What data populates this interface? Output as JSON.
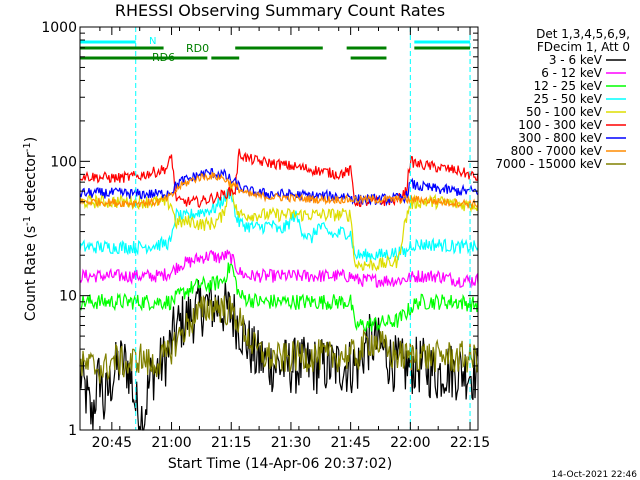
{
  "chart_data": {
    "type": "line",
    "title": "RHESSI Observing Summary Count Rates",
    "xlabel": "Start Time (14-Apr-06 20:37:02)",
    "ylabel_main": "Count Rate (s",
    "ylabel_sup1": "-1",
    "ylabel_mid": " detector",
    "ylabel_sup2": "-1",
    "ylabel_end": ")",
    "y_scale": "log",
    "ylim": [
      1,
      1000
    ],
    "xlim_minutes": [
      0,
      100
    ],
    "x_ticks": [
      {
        "value": 8,
        "label": "20:45"
      },
      {
        "value": 23,
        "label": "21:00"
      },
      {
        "value": 38,
        "label": "21:15"
      },
      {
        "value": 53,
        "label": "21:30"
      },
      {
        "value": 68,
        "label": "21:45"
      },
      {
        "value": 83,
        "label": "22:00"
      },
      {
        "value": 98,
        "label": "22:15"
      }
    ],
    "y_ticks": [
      {
        "value": 1,
        "label": "1"
      },
      {
        "value": 10,
        "label": "10"
      },
      {
        "value": 100,
        "label": "100"
      },
      {
        "value": 1000,
        "label": "1000"
      }
    ],
    "legend_header": [
      "Det 1,3,4,5,6,9,",
      "FDecim 1, Att 0"
    ],
    "series": [
      {
        "name": "3 - 6 keV",
        "color": "#000000",
        "x": [
          0,
          2,
          3,
          5,
          6,
          8,
          10,
          12,
          14,
          16,
          18,
          20,
          22,
          24,
          26,
          28,
          30,
          32,
          34,
          36,
          38,
          40,
          42,
          44,
          46,
          48,
          50,
          52,
          54,
          56,
          58,
          60,
          62,
          64,
          66,
          68,
          70,
          72,
          74,
          76,
          78,
          80,
          82,
          84,
          86,
          88,
          90,
          92,
          94,
          96,
          98,
          100
        ],
        "values": [
          2.6,
          1.6,
          1.2,
          2.6,
          1.5,
          2.4,
          3.2,
          3.0,
          1.5,
          1.2,
          2.6,
          3.0,
          3.6,
          5.5,
          6.5,
          7.0,
          8.0,
          8.5,
          8.5,
          8.0,
          7.5,
          6.0,
          4.5,
          3.5,
          3.3,
          3.1,
          3.0,
          3.0,
          3.0,
          3.0,
          3.0,
          3.0,
          3.0,
          3.0,
          3.0,
          3.0,
          3.0,
          4.4,
          4.5,
          4.0,
          3.3,
          3.0,
          2.9,
          3.0,
          3.0,
          2.8,
          2.6,
          2.9,
          2.7,
          2.8,
          2.7,
          2.6
        ]
      },
      {
        "name": "6 - 12 keV",
        "color": "#ff00ff",
        "x": [
          0,
          5,
          10,
          15,
          20,
          23,
          25,
          28,
          30,
          33,
          35,
          37,
          38,
          39,
          40,
          42,
          45,
          50,
          55,
          60,
          65,
          68,
          70,
          75,
          80,
          85,
          90,
          95,
          100
        ],
        "values": [
          14,
          14,
          14,
          14,
          14,
          15,
          17,
          18,
          19,
          20,
          19,
          20,
          19,
          17,
          15,
          14,
          14,
          14,
          14,
          14,
          14,
          14,
          13,
          13,
          13,
          14,
          14,
          13,
          13
        ]
      },
      {
        "name": "12 - 25 keV",
        "color": "#00ff00",
        "x": [
          0,
          5,
          10,
          15,
          20,
          23,
          25,
          27,
          30,
          33,
          36,
          38,
          39,
          40,
          42,
          45,
          50,
          55,
          60,
          65,
          68,
          69,
          70,
          75,
          80,
          85,
          90,
          95,
          100
        ],
        "values": [
          9,
          9,
          9,
          9,
          9,
          9,
          10,
          11,
          12,
          12,
          13,
          17,
          13,
          10,
          9.5,
          9,
          9,
          9,
          9,
          9,
          9,
          6,
          6,
          6.2,
          6.5,
          9,
          9,
          9,
          8.5
        ]
      },
      {
        "name": "25 - 50 keV",
        "color": "#00ffff",
        "x": [
          0,
          5,
          10,
          15,
          20,
          23,
          24,
          26,
          28,
          30,
          32,
          34,
          36,
          38,
          39,
          40,
          42,
          45,
          48,
          50,
          52,
          54,
          56,
          58,
          60,
          62,
          64,
          66,
          68,
          69,
          70,
          75,
          80,
          82,
          83,
          85,
          90,
          95,
          100
        ],
        "values": [
          23,
          23,
          23,
          23,
          24,
          25,
          40,
          38,
          40,
          42,
          43,
          45,
          52,
          60,
          40,
          35,
          33,
          32,
          34,
          30,
          33,
          40,
          30,
          26,
          33,
          30,
          28,
          30,
          29,
          20,
          20,
          20,
          21,
          21,
          24,
          24,
          24,
          23,
          23
        ]
      },
      {
        "name": "50 - 100 keV",
        "color": "#dddd00",
        "x": [
          0,
          5,
          10,
          15,
          20,
          23,
          24,
          26,
          28,
          30,
          32,
          34,
          36,
          38,
          39,
          40,
          42,
          45,
          50,
          55,
          60,
          65,
          68,
          69,
          70,
          75,
          80,
          83,
          85,
          90,
          95,
          100
        ],
        "values": [
          50,
          50,
          50,
          50,
          50,
          48,
          35,
          35,
          36,
          34,
          34,
          35,
          40,
          70,
          45,
          40,
          40,
          40,
          40,
          40,
          40,
          40,
          40,
          17,
          17,
          17,
          18,
          48,
          50,
          50,
          48,
          47
        ]
      },
      {
        "name": "100 - 300 keV",
        "color": "#ff0000",
        "x": [
          0,
          5,
          10,
          15,
          20,
          22,
          23,
          24,
          25,
          30,
          35,
          38,
          39,
          40,
          42,
          45,
          50,
          55,
          60,
          65,
          68,
          69,
          70,
          75,
          80,
          82,
          83,
          85,
          90,
          95,
          100
        ],
        "values": [
          78,
          76,
          75,
          78,
          85,
          90,
          110,
          55,
          50,
          50,
          55,
          60,
          60,
          115,
          105,
          100,
          95,
          90,
          85,
          80,
          85,
          50,
          50,
          50,
          52,
          60,
          100,
          95,
          90,
          85,
          75
        ]
      },
      {
        "name": "300 - 800 keV",
        "color": "#0000ff",
        "x": [
          0,
          5,
          10,
          15,
          20,
          23,
          25,
          28,
          30,
          33,
          36,
          38,
          40,
          42,
          45,
          50,
          55,
          60,
          65,
          68,
          69,
          70,
          75,
          80,
          82,
          83,
          85,
          90,
          95,
          100
        ],
        "values": [
          58,
          58,
          58,
          57,
          57,
          60,
          70,
          75,
          80,
          82,
          80,
          72,
          65,
          60,
          58,
          57,
          56,
          55,
          55,
          55,
          52,
          52,
          52,
          53,
          55,
          68,
          65,
          62,
          60,
          60
        ]
      },
      {
        "name": "800 - 7000 keV",
        "color": "#ff8c00",
        "x": [
          0,
          5,
          10,
          15,
          20,
          23,
          25,
          28,
          30,
          33,
          36,
          38,
          40,
          42,
          45,
          50,
          55,
          60,
          65,
          70,
          75,
          80,
          85,
          90,
          95,
          100
        ],
        "values": [
          50,
          50,
          49,
          49,
          50,
          55,
          65,
          72,
          76,
          78,
          75,
          68,
          62,
          57,
          55,
          54,
          53,
          52,
          52,
          52,
          52,
          52,
          52,
          50,
          49,
          48
        ]
      },
      {
        "name": "7000 - 15000 keV",
        "color": "#808000",
        "x": [
          0,
          3,
          6,
          9,
          12,
          15,
          18,
          20,
          22,
          24,
          26,
          28,
          30,
          32,
          34,
          36,
          38,
          40,
          42,
          44,
          46,
          48,
          50,
          52,
          54,
          56,
          58,
          60,
          62,
          64,
          66,
          68,
          70,
          72,
          74,
          76,
          78,
          80,
          82,
          84,
          86,
          88,
          90,
          92,
          94,
          96,
          98,
          100
        ],
        "values": [
          3.0,
          3.0,
          2.8,
          3.4,
          3.0,
          3.5,
          3.0,
          3.3,
          3.6,
          4.5,
          5.5,
          6.5,
          7.5,
          8.0,
          8.5,
          8.0,
          7.5,
          6.5,
          5.0,
          4.0,
          3.6,
          3.5,
          3.4,
          3.4,
          3.5,
          3.6,
          3.5,
          3.6,
          3.5,
          3.5,
          3.6,
          3.6,
          3.6,
          4.5,
          4.6,
          4.2,
          3.6,
          3.6,
          3.5,
          3.6,
          3.6,
          3.5,
          3.5,
          3.6,
          3.4,
          3.5,
          3.4,
          3.5
        ]
      }
    ],
    "flags": {
      "N_label": "N",
      "RD0_label": "RD0",
      "RD6_label": "RD6",
      "N_segments": [
        [
          0,
          14
        ],
        [
          84,
          98
        ]
      ],
      "RD0_segments": [
        [
          0,
          21
        ],
        [
          39,
          61
        ],
        [
          67,
          77
        ],
        [
          84,
          98
        ]
      ],
      "RD6_segments": [
        [
          0,
          32
        ],
        [
          33,
          40
        ],
        [
          68,
          77
        ]
      ],
      "N_color": "#00ffff",
      "RD_color": "#008000"
    },
    "saa_markers_minutes": [
      14,
      83
    ],
    "night_markers_minutes": [
      0,
      98
    ]
  },
  "timestamp": "14-Oct-2021 22:46"
}
